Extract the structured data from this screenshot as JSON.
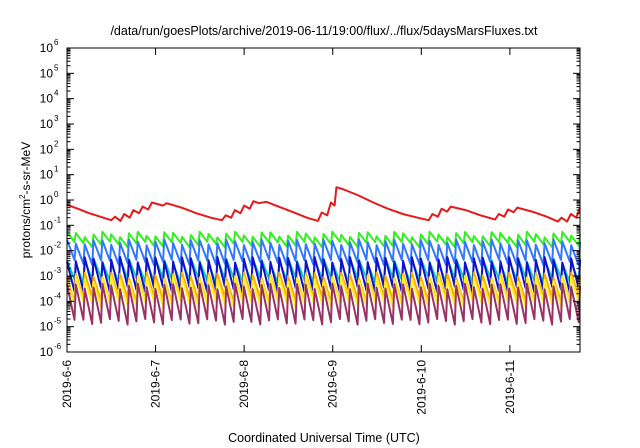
{
  "chart_data": {
    "type": "line",
    "title": "/data/run/goesPlots/archive/2019-06-11/19:00/flux/../flux/5daysMarsFluxes.txt",
    "xlabel": "Coordinated Universal Time (UTC)",
    "ylabel_parts": {
      "pre": "protons/cm",
      "sup": "2",
      "post": "-s-sr-MeV"
    },
    "x_range": [
      "2019-06-06",
      "2019-06-11T19:00"
    ],
    "y_scale": "log",
    "ylim": [
      1e-06,
      1000000.0
    ],
    "grid": false,
    "legend": "none",
    "x_tick_labels": [
      "2019-6-6",
      "2019-6-7",
      "2019-6-8",
      "2019-6-9",
      "2019-6-10",
      "2019-6-11"
    ],
    "y_ticks": [
      {
        "base": "10",
        "exp": "-6"
      },
      {
        "base": "10",
        "exp": "-5"
      },
      {
        "base": "10",
        "exp": "-4"
      },
      {
        "base": "10",
        "exp": "-3"
      },
      {
        "base": "10",
        "exp": "-2"
      },
      {
        "base": "10",
        "exp": "-1"
      },
      {
        "base": "10",
        "exp": "0"
      },
      {
        "base": "10",
        "exp": "1"
      },
      {
        "base": "10",
        "exp": "2"
      },
      {
        "base": "10",
        "exp": "3"
      },
      {
        "base": "10",
        "exp": "4"
      },
      {
        "base": "10",
        "exp": "5"
      },
      {
        "base": "10",
        "exp": "6"
      }
    ],
    "series": [
      {
        "color": "#e41a1c",
        "points": [
          [
            "2019-06-06T00:00",
            0.65
          ],
          [
            "2019-06-06T03:00",
            0.45
          ],
          [
            "2019-06-06T06:00",
            0.3
          ],
          [
            "2019-06-06T09:00",
            0.22
          ],
          [
            "2019-06-06T12:00",
            0.16
          ],
          [
            "2019-06-06T13:00",
            0.22
          ],
          [
            "2019-06-06T14:30",
            0.15
          ],
          [
            "2019-06-06T15:30",
            0.28
          ],
          [
            "2019-06-06T17:00",
            0.2
          ],
          [
            "2019-06-06T18:00",
            0.4
          ],
          [
            "2019-06-06T19:30",
            0.3
          ],
          [
            "2019-06-06T20:30",
            0.55
          ],
          [
            "2019-06-06T22:00",
            0.42
          ],
          [
            "2019-06-06T23:00",
            0.8
          ],
          [
            "2019-06-07T02:00",
            0.6
          ],
          [
            "2019-06-07T03:00",
            0.75
          ],
          [
            "2019-06-07T07:00",
            0.5
          ],
          [
            "2019-06-07T11:00",
            0.3
          ],
          [
            "2019-06-07T15:00",
            0.2
          ],
          [
            "2019-06-07T18:00",
            0.16
          ],
          [
            "2019-06-07T19:00",
            0.25
          ],
          [
            "2019-06-07T20:30",
            0.2
          ],
          [
            "2019-06-07T21:30",
            0.4
          ],
          [
            "2019-06-07T23:00",
            0.3
          ],
          [
            "2019-06-08T00:00",
            0.6
          ],
          [
            "2019-06-08T01:30",
            0.45
          ],
          [
            "2019-06-08T02:30",
            0.9
          ],
          [
            "2019-06-08T04:00",
            0.75
          ],
          [
            "2019-06-08T06:00",
            0.85
          ],
          [
            "2019-06-08T10:00",
            0.5
          ],
          [
            "2019-06-08T14:00",
            0.3
          ],
          [
            "2019-06-08T17:00",
            0.2
          ],
          [
            "2019-06-08T20:00",
            0.15
          ],
          [
            "2019-06-08T21:00",
            0.32
          ],
          [
            "2019-06-08T22:30",
            0.25
          ],
          [
            "2019-06-08T23:30",
            0.8
          ],
          [
            "2019-06-09T00:30",
            0.6
          ],
          [
            "2019-06-09T01:00",
            3.2
          ],
          [
            "2019-06-09T03:00",
            2.6
          ],
          [
            "2019-06-09T07:00",
            1.5
          ],
          [
            "2019-06-09T11:00",
            0.8
          ],
          [
            "2019-06-09T15:00",
            0.45
          ],
          [
            "2019-06-09T19:00",
            0.28
          ],
          [
            "2019-06-09T23:00",
            0.2
          ],
          [
            "2019-06-10T02:00",
            0.16
          ],
          [
            "2019-06-10T03:00",
            0.28
          ],
          [
            "2019-06-10T04:30",
            0.22
          ],
          [
            "2019-06-10T05:30",
            0.45
          ],
          [
            "2019-06-10T07:00",
            0.35
          ],
          [
            "2019-06-10T08:00",
            0.55
          ],
          [
            "2019-06-10T12:00",
            0.4
          ],
          [
            "2019-06-10T16:00",
            0.25
          ],
          [
            "2019-06-10T20:00",
            0.17
          ],
          [
            "2019-06-10T21:00",
            0.28
          ],
          [
            "2019-06-10T22:30",
            0.22
          ],
          [
            "2019-06-10T23:30",
            0.42
          ],
          [
            "2019-06-11T01:00",
            0.33
          ],
          [
            "2019-06-11T02:00",
            0.5
          ],
          [
            "2019-06-11T06:00",
            0.35
          ],
          [
            "2019-06-11T10:00",
            0.22
          ],
          [
            "2019-06-11T13:00",
            0.14
          ],
          [
            "2019-06-11T14:00",
            0.2
          ],
          [
            "2019-06-11T15:30",
            0.14
          ],
          [
            "2019-06-11T16:30",
            0.28
          ],
          [
            "2019-06-11T18:00",
            0.2
          ],
          [
            "2019-06-11T19:00",
            0.5
          ]
        ]
      },
      {
        "color": "#33ee22",
        "sawtooth": {
          "peak": 0.045,
          "trough": 0.018,
          "cycles": 58
        }
      },
      {
        "color": "#3377ff",
        "sawtooth": {
          "peak": 0.022,
          "trough": 0.0035,
          "cycles": 58
        }
      },
      {
        "color": "#11ccbb",
        "sawtooth": {
          "peak": 0.004,
          "trough": 0.0007,
          "cycles": 58
        }
      },
      {
        "color": "#1111cc",
        "sawtooth": {
          "peak": 0.0045,
          "trough": 0.0003,
          "cycles": 58
        }
      },
      {
        "color": "#ffaa00",
        "sawtooth": {
          "peak": 0.0011,
          "trough": 0.00012,
          "cycles": 58
        }
      },
      {
        "color": "#ffee22",
        "sawtooth": {
          "peak": 0.0008,
          "trough": 8e-05,
          "cycles": 58
        }
      },
      {
        "color": "#993366",
        "sawtooth": {
          "peak": 0.0004,
          "trough": 1.6e-05,
          "cycles": 58
        }
      }
    ]
  }
}
